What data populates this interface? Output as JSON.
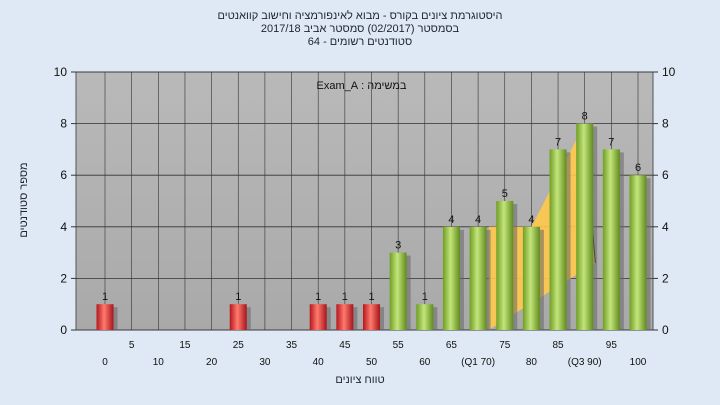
{
  "chart_data": {
    "type": "bar",
    "title_lines": [
      "היסטוגרמת ציונים בקורס - מבוא לאינפורמציה וחישוב קוואנטים",
      "בסמסטר (02/2017) סמסטר אביב 2017/18",
      "סטודנטים רשומים - 64"
    ],
    "annotation": "במשימה : Exam_A",
    "ylabel": "מספר סטודנטים",
    "xlabel": "טווח ציונים",
    "ylim": [
      0,
      10
    ],
    "yticks": [
      0,
      2,
      4,
      6,
      8,
      10
    ],
    "grid": true,
    "x_tick_labels": {
      "row1": [
        "5",
        "15",
        "25",
        "35",
        "45",
        "55",
        "65",
        "75",
        "85",
        "95"
      ],
      "row2": [
        "0",
        "10",
        "20",
        "30",
        "40",
        "50",
        "60",
        "(Q1 70)",
        "80",
        "(Q3 90)",
        "100"
      ]
    },
    "bars": [
      {
        "x": 0,
        "value": 1,
        "color": "red"
      },
      {
        "x": 25,
        "value": 1,
        "color": "red"
      },
      {
        "x": 40,
        "value": 1,
        "color": "red"
      },
      {
        "x": 45,
        "value": 1,
        "color": "red"
      },
      {
        "x": 50,
        "value": 1,
        "color": "red"
      },
      {
        "x": 55,
        "value": 3,
        "color": "green"
      },
      {
        "x": 60,
        "value": 1,
        "color": "green"
      },
      {
        "x": 65,
        "value": 4,
        "color": "green"
      },
      {
        "x": 70,
        "value": 4,
        "color": "green"
      },
      {
        "x": 75,
        "value": 5,
        "color": "green"
      },
      {
        "x": 80,
        "value": 4,
        "color": "green"
      },
      {
        "x": 85,
        "value": 7,
        "color": "green"
      },
      {
        "x": 90,
        "value": 8,
        "color": "green"
      },
      {
        "x": 95,
        "value": 7,
        "color": "green"
      },
      {
        "x": 100,
        "value": 6,
        "color": "green"
      }
    ],
    "quartile_band": {
      "color": "#ffc94a",
      "points": [
        [
          72,
          0
        ],
        [
          72,
          4
        ],
        [
          80,
          4
        ],
        [
          90,
          8
        ],
        [
          92,
          2.6
        ]
      ]
    },
    "colors": {
      "plot_background": "#b0b0b0",
      "red_bar": "#e0262b",
      "green_bar": "#8cbf36",
      "grid": "#333333"
    }
  }
}
